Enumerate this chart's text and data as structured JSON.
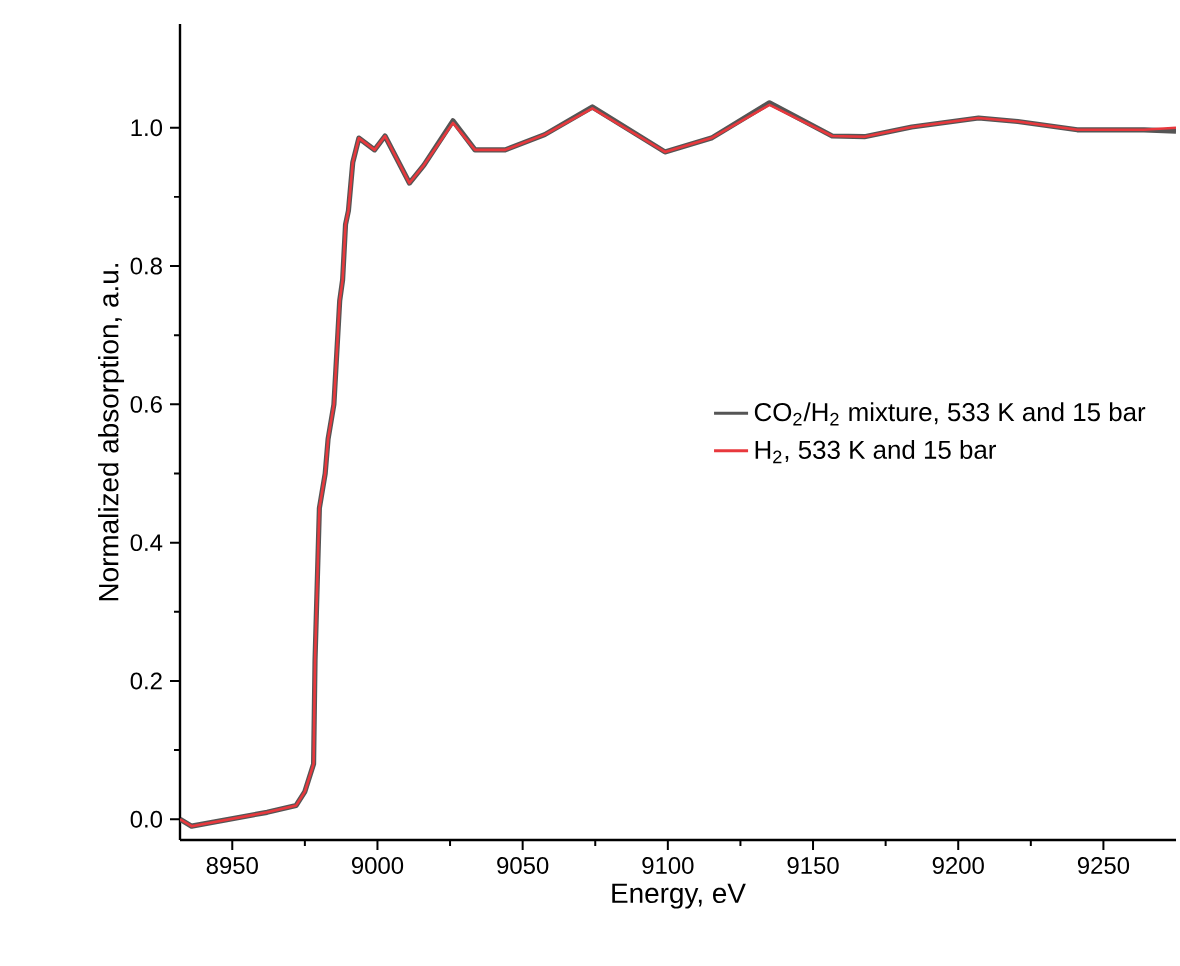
{
  "chart_data": {
    "type": "line",
    "xlabel": "Energy, eV",
    "ylabel": "Normalized absorption, a.u.",
    "xlim": [
      8932,
      9275
    ],
    "ylim": [
      -0.03,
      1.15
    ],
    "xticks": [
      8950,
      9000,
      9050,
      9100,
      9150,
      9200,
      9250
    ],
    "yticks": [
      {
        "value": 0,
        "label": "0.0"
      },
      {
        "value": 0.2,
        "label": "0.2"
      },
      {
        "value": 0.4,
        "label": "0.4"
      },
      {
        "value": 0.6,
        "label": "0.6"
      },
      {
        "value": 0.8,
        "label": "0.8"
      },
      {
        "value": 1.0,
        "label": "1.0"
      }
    ],
    "x": [
      8932,
      8936,
      8962,
      8972,
      8975,
      8978,
      8978.5,
      8980,
      8982,
      8983,
      8985,
      8987,
      8988,
      8989,
      8990,
      8991.5,
      8993.6,
      8999,
      9002.6,
      9011,
      9016,
      9026,
      9033.6,
      9044,
      9057.6,
      9074,
      9099,
      9115,
      9135,
      9156.6,
      9167.7,
      9184,
      9207,
      9220.5,
      9241,
      9264,
      9275
    ],
    "series": [
      {
        "name": "CO$_{2}$/H$_{2}$ mixture, 533 K and 15 bar",
        "color": "#555555",
        "values": [
          0,
          -0.01,
          0.01,
          0.02,
          0.04,
          0.08,
          0.23,
          0.45,
          0.5,
          0.55,
          0.6,
          0.75,
          0.78,
          0.86,
          0.88,
          0.95,
          0.985,
          0.968,
          0.988,
          0.92,
          0.946,
          1.01,
          0.968,
          0.968,
          0.99,
          1.03,
          0.965,
          0.985,
          1.036,
          0.988,
          0.987,
          1.001,
          1.014,
          1.009,
          0.997,
          0.997,
          0.995
        ]
      },
      {
        "name": "H$_{2}$, 533 K and 15 bar",
        "color": "#e8383d",
        "values": [
          0,
          -0.01,
          0.01,
          0.02,
          0.04,
          0.08,
          0.23,
          0.45,
          0.5,
          0.55,
          0.6,
          0.75,
          0.78,
          0.86,
          0.88,
          0.95,
          0.985,
          0.968,
          0.988,
          0.92,
          0.946,
          1.007,
          0.968,
          0.968,
          0.99,
          1.028,
          0.965,
          0.985,
          1.033,
          0.988,
          0.987,
          1.001,
          1.014,
          1.009,
          0.997,
          0.997,
          1.0
        ]
      }
    ],
    "legend": "right",
    "grid": false,
    "marker": "none",
    "line_style": "solid"
  }
}
